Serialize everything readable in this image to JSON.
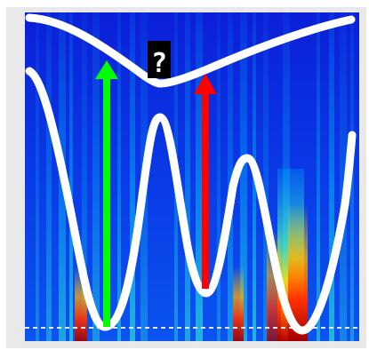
{
  "annotation": {
    "question_mark": "?"
  },
  "colors": {
    "background_frame": "#e9e9e9",
    "map_low": "#0000ee",
    "map_mid": "#00c8ff",
    "map_high": "#ffd400",
    "map_peak": "#c80000",
    "curve": "#ffffff",
    "arrow_green": "#00ff00",
    "arrow_red": "#ff0000",
    "baseline": "#e6e6e6",
    "label_bg": "#000000",
    "label_text": "#ffffff"
  },
  "elements": {
    "heatmap": "spectrogram-heatmap",
    "top_curve": "upper-envelope-curve",
    "bottom_curve": "oscillating-curve",
    "green_arrow": "up-arrow-green",
    "red_arrow": "up-arrow-red",
    "dashed_line": "baseline-dashed"
  }
}
